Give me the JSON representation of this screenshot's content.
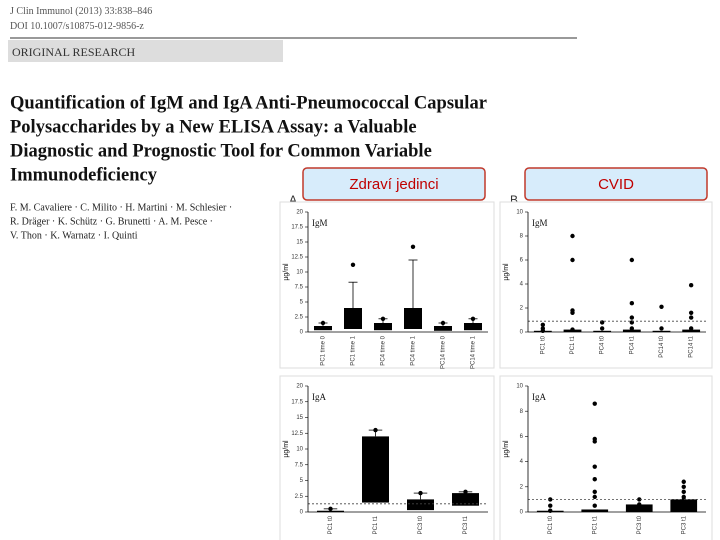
{
  "header": {
    "citation": "J Clin Immunol (2013) 33:838–846",
    "doi": "DOI 10.1007/s10875-012-9856-z",
    "section": "ORIGINAL RESEARCH"
  },
  "paper_title": [
    "Quantification of IgM and IgA Anti-Pneumococcal Capsular",
    "Polysaccharides by a New ELISA Assay: a Valuable",
    "Diagnostic and Prognostic Tool for Common Variable",
    "Immunodeficiency"
  ],
  "authors": [
    "F. M. Cavaliere · C. Milito · H. Martini · M. Schlesier ·",
    "R. Dräger · K. Schütz · G. Brunetti · A. M. Pesce ·",
    "V. Thon · K. Warnatz · I. Quinti"
  ],
  "group_labels": [
    "Zdraví jedinci",
    "CVID"
  ],
  "panel_labels": [
    "A",
    "B"
  ],
  "chart_data": [
    {
      "type": "box",
      "title": "IgM",
      "y_label": "µg/ml",
      "categories": [
        "PC1 time 0",
        "PC1 time 1",
        "PC4 time 0",
        "PC4 time 1",
        "PC14 time 0",
        "PC14 time 1"
      ],
      "box_low": [
        0.3,
        0.5,
        0.3,
        0.5,
        0.2,
        0.3
      ],
      "box_high": [
        1.0,
        4,
        1.5,
        4,
        1.0,
        1.5
      ],
      "whisker": [
        1.5,
        8.3,
        2.2,
        12,
        1.5,
        2.2
      ],
      "points": [
        [
          1.5
        ],
        [
          11.2
        ],
        [
          2.2
        ],
        [
          14.2
        ],
        [
          1.5
        ],
        [
          2.2
        ]
      ],
      "ylim": [
        0,
        20
      ],
      "yticks": [
        0,
        2.5,
        5,
        7.5,
        10,
        12.5,
        15,
        17.5,
        20
      ],
      "color": "#000000"
    },
    {
      "type": "box",
      "title": "IgM",
      "y_label": "µg/ml",
      "categories": [
        "PC1 t0",
        "PC1 t1",
        "PC4 t0",
        "PC4 t1",
        "PC14 t0",
        "PC14 t1"
      ],
      "box_low": [
        0,
        0,
        0,
        0,
        0,
        0
      ],
      "box_high": [
        0.1,
        0.2,
        0.1,
        0.2,
        0.1,
        0.2
      ],
      "whisker": [
        null,
        null,
        null,
        null,
        null,
        null
      ],
      "points": [
        [
          0.1,
          0.3,
          0.6
        ],
        [
          8,
          6,
          1.8,
          1.6,
          0.2
        ],
        [
          0.8,
          0.3
        ],
        [
          6,
          2.4,
          1.2,
          0.8,
          0.3
        ],
        [
          2.1,
          0.3
        ],
        [
          3.9,
          1.6,
          1.2,
          0.3
        ]
      ],
      "reference_line": 0.9,
      "ylim": [
        0,
        10
      ],
      "yticks": [
        0,
        2,
        4,
        6,
        8,
        10
      ],
      "color": "#000000"
    },
    {
      "type": "box",
      "title": "IgA",
      "y_label": "µg/ml",
      "categories": [
        "PC1 t0",
        "PC1 t1",
        "PC3 t0",
        "PC3 t1"
      ],
      "box_low": [
        0,
        1.5,
        0.3,
        1
      ],
      "box_high": [
        0.2,
        12,
        2,
        3
      ],
      "whisker": [
        0.5,
        13,
        3,
        3.2
      ],
      "points": [
        [
          0.5
        ],
        [
          13
        ],
        [
          3
        ],
        [
          3.2
        ]
      ],
      "reference_line": 1.3,
      "ylim": [
        0,
        20
      ],
      "yticks": [
        0,
        2.5,
        5,
        7.5,
        10,
        12.5,
        15,
        17.5,
        20
      ],
      "color": "#000000"
    },
    {
      "type": "box",
      "title": "IgA",
      "y_label": "µg/ml",
      "categories": [
        "PC1 t0",
        "PC1 t1",
        "PC3 t0",
        "PC3 t1"
      ],
      "box_low": [
        0,
        0,
        0,
        0
      ],
      "box_high": [
        0.1,
        0.2,
        0.6,
        1
      ],
      "whisker": [
        null,
        null,
        null,
        null
      ],
      "points": [
        [
          1,
          0.5,
          0.1
        ],
        [
          8.6,
          5.8,
          5.6,
          3.6,
          2.6,
          1.6,
          1.2,
          0.5
        ],
        [
          1,
          0.6
        ],
        [
          2.4,
          2,
          1.6,
          1.2,
          1
        ]
      ],
      "reference_line": 1,
      "ylim": [
        0,
        10
      ],
      "yticks": [
        0,
        2,
        4,
        6,
        8,
        10
      ],
      "color": "#000000"
    }
  ]
}
